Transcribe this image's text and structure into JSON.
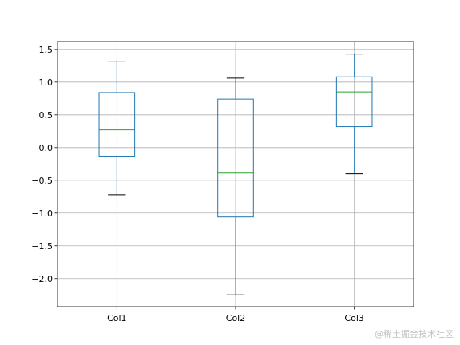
{
  "chart_data": {
    "type": "box",
    "categories": [
      "Col1",
      "Col2",
      "Col3"
    ],
    "boxes": [
      {
        "name": "Col1",
        "whislo": -0.72,
        "q1": -0.13,
        "med": 0.27,
        "q3": 0.84,
        "whishi": 1.32
      },
      {
        "name": "Col2",
        "whislo": -2.25,
        "q1": -1.06,
        "med": -0.39,
        "q3": 0.74,
        "whishi": 1.06
      },
      {
        "name": "Col3",
        "whislo": -0.4,
        "q1": 0.32,
        "med": 0.85,
        "q3": 1.08,
        "whishi": 1.43
      }
    ],
    "ylim": [
      -2.43,
      1.62
    ],
    "yticks": [
      1.5,
      1.0,
      0.5,
      0.0,
      -0.5,
      -1.0,
      -1.5,
      -2.0
    ],
    "ytick_labels": [
      "1.5",
      "1.0",
      "0.5",
      "0.0",
      "−0.5",
      "−1.0",
      "−1.5",
      "−2.0"
    ],
    "grid": true,
    "title": "",
    "xlabel": "",
    "ylabel": "",
    "colors": {
      "box": "#1f77b4",
      "median": "#2ca02c",
      "cap": "#000000",
      "grid": "#b0b0b0",
      "axes": "#000000"
    }
  },
  "watermark": "@稀土掘金技术社区"
}
